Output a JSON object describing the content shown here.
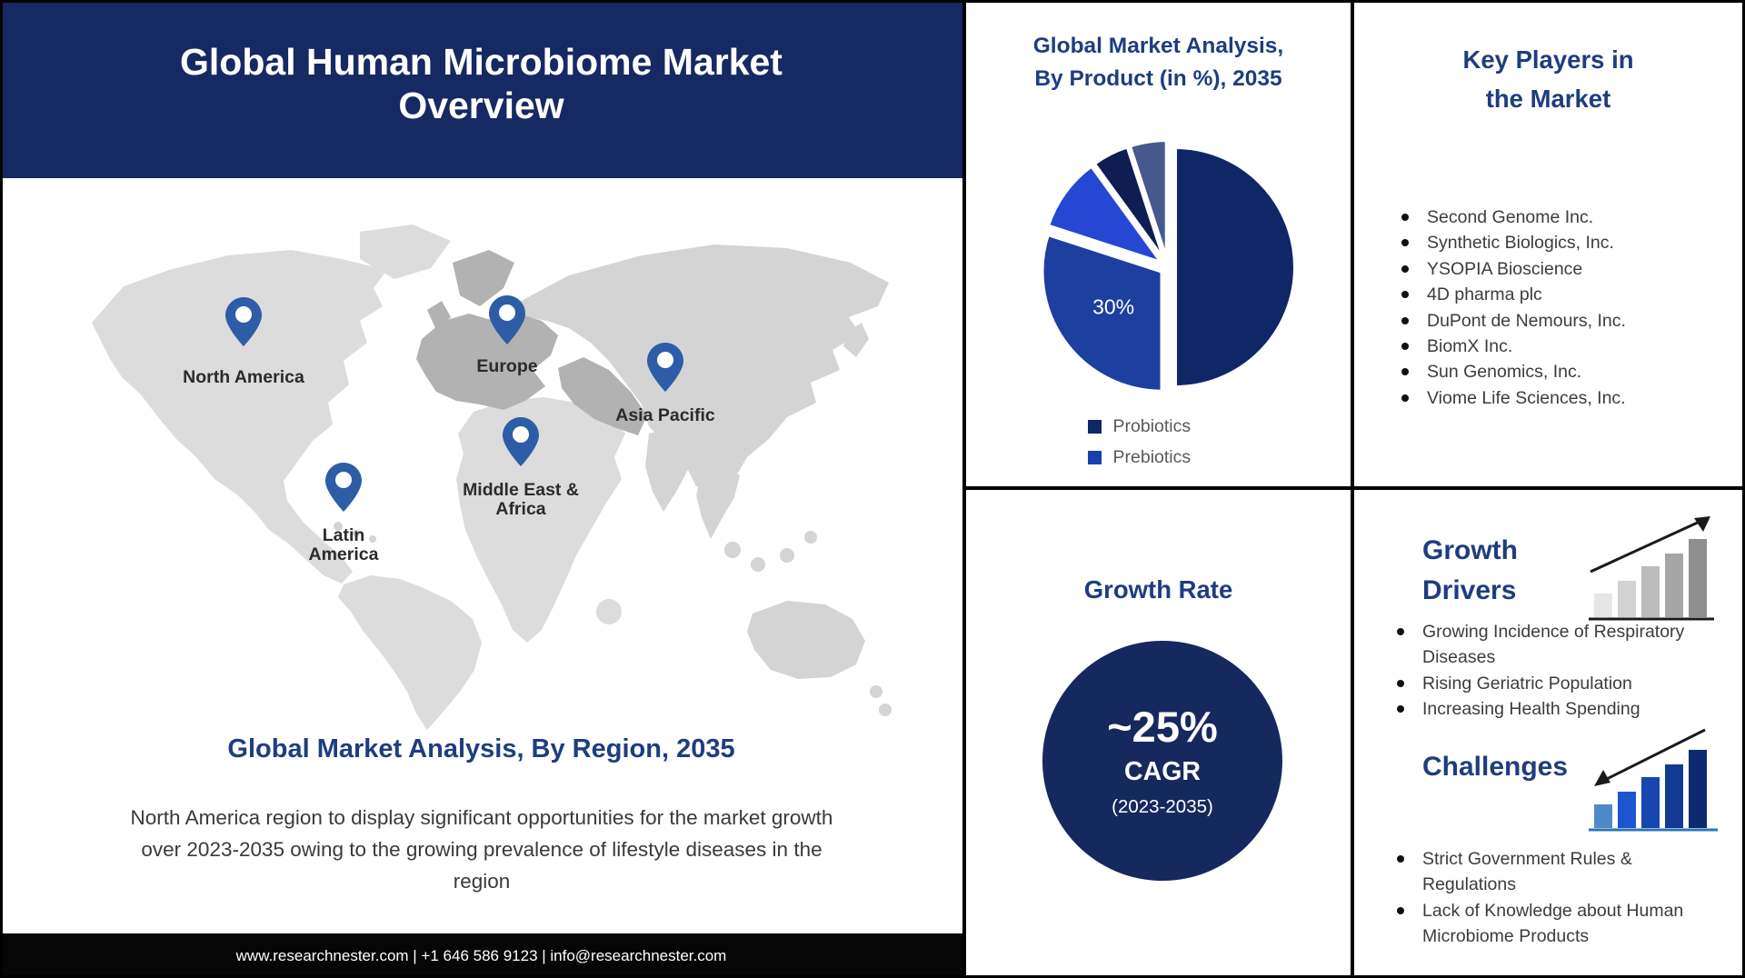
{
  "header": {
    "title_lines": [
      "Global Human Microbiome Market",
      "Overview"
    ]
  },
  "left_panel": {
    "map_regions": [
      {
        "label": "North America"
      },
      {
        "label": "Europe"
      },
      {
        "label": "Asia Pacific"
      },
      {
        "label": "Middle East & Africa"
      },
      {
        "label": "Latin America"
      }
    ],
    "region_heading": "Global Market Analysis, By Region, 2035",
    "region_note": "North America region to display significant opportunities for the market growth over 2023-2035 owing to the growing prevalence of lifestyle diseases in the region",
    "footer_text": "www.researchnester.com | +1 646 586 9123 | info@researchnester.com"
  },
  "product_panel": {
    "title_lines": [
      "Global Market Analysis,",
      "By Product (in %), 2035"
    ],
    "legend": [
      {
        "label": "Probiotics",
        "color": "#0f2767"
      },
      {
        "label": "Prebiotics",
        "color": "#1b3fae"
      }
    ]
  },
  "chart_data": [
    {
      "type": "pie",
      "title": "Global Market Analysis, By Product (in %), 2035",
      "style": "exploded",
      "legend_position": "bottom",
      "segments": [
        {
          "label": "Probiotics",
          "value": 50,
          "color": "#0f2767",
          "data_label": ""
        },
        {
          "label": "Prebiotics",
          "value": 30,
          "color": "#1d3f9f",
          "data_label": "30%"
        },
        {
          "label": "",
          "value": 10,
          "color": "#2646d4",
          "data_label": ""
        },
        {
          "label": "",
          "value": 5,
          "color": "#0e1e52",
          "data_label": ""
        },
        {
          "label": "",
          "value": 5,
          "color": "#46598c",
          "data_label": ""
        }
      ]
    }
  ],
  "growth_panel": {
    "title": "Growth Rate",
    "rate": "~25%",
    "metric": "CAGR",
    "period": "(2023-2035)"
  },
  "key_players_panel": {
    "title_lines": [
      "Key Players in",
      "the Market"
    ],
    "players": [
      "Second Genome Inc.",
      "Synthetic Biologics, Inc.",
      "YSOPIA Bioscience",
      "4D pharma plc",
      "DuPont de Nemours, Inc.",
      "BiomX Inc.",
      "Sun Genomics, Inc.",
      "Viome Life Sciences, Inc."
    ]
  },
  "drivers_panel": {
    "title_lines": [
      "Growth",
      "Drivers"
    ],
    "items": [
      "Growing Incidence of Respiratory Diseases",
      " Rising Geriatric Population",
      "Increasing Health Spending"
    ]
  },
  "challenges_panel": {
    "title": "Challenges",
    "items": [
      "Strict Government Rules & Regulations",
      "Lack of Knowledge about Human Microbiome Products"
    ]
  },
  "colors": {
    "brand_navy": "#152a63",
    "panel_title_navy": "#1e3d80",
    "growth_circle_navy": "#16295e",
    "map_pin_blue": "#2d5da6",
    "map_land_gray": "#dcdcdc",
    "map_europe_gray": "#b2b2b2",
    "footer_bg": "#060606",
    "pie_label_white": "#ffffff"
  }
}
